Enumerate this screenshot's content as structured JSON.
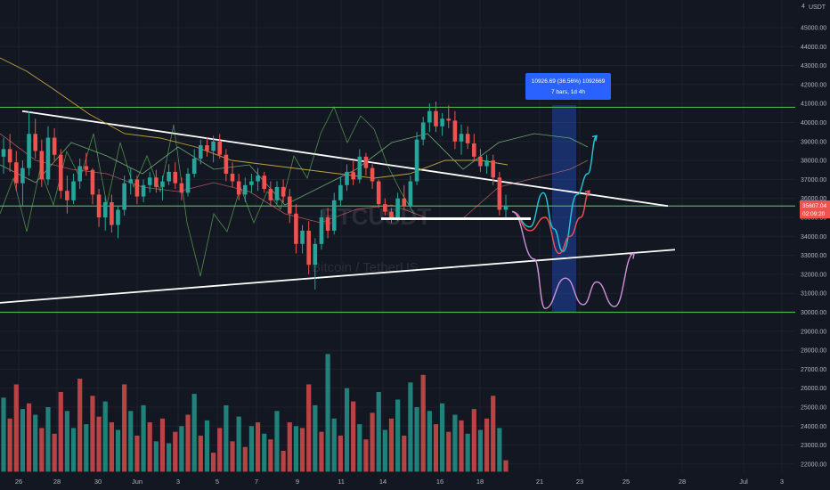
{
  "currency": "USDT",
  "watermark": {
    "ticker": "BTCUSDT",
    "name": "Bitcoin / TetherUS"
  },
  "measure": {
    "line1": "10926.69 (36.56%) 1092669",
    "line2": "7 bars, 1d 4h"
  },
  "price_tag": {
    "price": "35607.04",
    "countdown": "02:09:20"
  },
  "colors": {
    "bg": "#131722",
    "up": "#26a69a",
    "down": "#ef5350",
    "resistance": "#4caf50",
    "trendline": "#ffffff",
    "measure": "#2962ff"
  },
  "chart_data": {
    "type": "candlestick",
    "y_range": [
      21600,
      46000
    ],
    "y_ticks": [
      "45000.00",
      "44000.00",
      "43000.00",
      "42000.00",
      "41000.00",
      "40000.00",
      "39000.00",
      "38000.00",
      "37000.00",
      "36000.00",
      "35000.00",
      "34000.00",
      "33000.00",
      "32000.00",
      "31000.00",
      "30000.00",
      "29000.00",
      "28000.00",
      "27000.00",
      "26000.00",
      "25000.00",
      "24000.00",
      "23000.00",
      "22000.00"
    ],
    "y_top_label": "4",
    "x_ticks": [
      "26",
      "28",
      "30",
      "Jun",
      "3",
      "5",
      "7",
      "9",
      "11",
      "14",
      "16",
      "18",
      "21",
      "23",
      "25",
      "28",
      "Jul",
      "3"
    ],
    "horizontal_levels": [
      40800,
      35600,
      30000
    ],
    "support_level": 34800,
    "trendlines": [
      {
        "from": [
          "26",
          40600
        ],
        "to": [
          "23",
          35600
        ]
      },
      {
        "from": [
          "26",
          30500
        ],
        "to": [
          "28",
          33300
        ]
      }
    ],
    "projections": [
      {
        "path": [
          35300,
          34500,
          36300,
          34400,
          33200,
          36200,
          37300,
          39300
        ]
      },
      {
        "path": [
          35300,
          34300,
          35000,
          33100,
          34000,
          35000,
          36400
        ]
      },
      {
        "path": [
          35300,
          32800,
          30200,
          31800,
          30400,
          31600,
          30300,
          33100
        ]
      }
    ],
    "candles": [
      [
        38200,
        39200,
        37300,
        38600
      ],
      [
        38600,
        39400,
        37400,
        37900
      ],
      [
        37900,
        38500,
        36400,
        36800
      ],
      [
        36800,
        38000,
        35600,
        37600
      ],
      [
        37600,
        40600,
        37200,
        39400
      ],
      [
        39400,
        40200,
        38100,
        38500
      ],
      [
        38500,
        39100,
        36600,
        37000
      ],
      [
        37000,
        39800,
        36700,
        39200
      ],
      [
        39200,
        39700,
        38000,
        38300
      ],
      [
        38300,
        38600,
        36000,
        36400
      ],
      [
        36400,
        37200,
        35200,
        35900
      ],
      [
        35900,
        37300,
        35700,
        36900
      ],
      [
        36900,
        38100,
        36500,
        37700
      ],
      [
        37700,
        38400,
        37200,
        37500
      ],
      [
        37500,
        37600,
        35700,
        36200
      ],
      [
        36200,
        36500,
        34500,
        35000
      ],
      [
        35000,
        36100,
        34300,
        35800
      ],
      [
        35800,
        36200,
        34200,
        34600
      ],
      [
        34600,
        35600,
        33900,
        35400
      ],
      [
        35400,
        37200,
        35100,
        36800
      ],
      [
        36800,
        37600,
        36200,
        37000
      ],
      [
        37000,
        37200,
        35700,
        36100
      ],
      [
        36100,
        37000,
        35800,
        36700
      ],
      [
        36700,
        37400,
        36300,
        37100
      ],
      [
        37100,
        37500,
        36300,
        36600
      ],
      [
        36600,
        37200,
        35900,
        36900
      ],
      [
        36900,
        37800,
        36700,
        37400
      ],
      [
        37400,
        37900,
        36500,
        36800
      ],
      [
        36800,
        37100,
        35900,
        36300
      ],
      [
        36300,
        37600,
        36100,
        37300
      ],
      [
        37300,
        38600,
        37100,
        38100
      ],
      [
        38100,
        39100,
        37800,
        38800
      ],
      [
        38800,
        39200,
        38200,
        38500
      ],
      [
        38500,
        39300,
        37900,
        39000
      ],
      [
        39000,
        39400,
        38100,
        38300
      ],
      [
        38300,
        38600,
        36900,
        37300
      ],
      [
        37300,
        37900,
        36600,
        36900
      ],
      [
        36900,
        37300,
        35900,
        36200
      ],
      [
        36200,
        37100,
        35800,
        36700
      ],
      [
        36700,
        37300,
        36300,
        36900
      ],
      [
        36900,
        37600,
        36400,
        37200
      ],
      [
        37200,
        37400,
        36300,
        36500
      ],
      [
        36500,
        36900,
        35600,
        35900
      ],
      [
        35900,
        36900,
        35700,
        36600
      ],
      [
        36600,
        37000,
        35800,
        36100
      ],
      [
        36100,
        36500,
        34700,
        35200
      ],
      [
        35200,
        35700,
        33100,
        33600
      ],
      [
        33600,
        34600,
        33100,
        34300
      ],
      [
        34300,
        34800,
        32000,
        32500
      ],
      [
        32500,
        33900,
        31200,
        33600
      ],
      [
        33600,
        35400,
        33300,
        35000
      ],
      [
        35000,
        35500,
        33900,
        34300
      ],
      [
        34300,
        36300,
        34100,
        35900
      ],
      [
        35900,
        37100,
        35600,
        36700
      ],
      [
        36700,
        37800,
        36400,
        37400
      ],
      [
        37400,
        38000,
        36700,
        37000
      ],
      [
        37000,
        38600,
        36800,
        38200
      ],
      [
        38200,
        38400,
        37200,
        37600
      ],
      [
        37600,
        37800,
        36500,
        36900
      ],
      [
        36900,
        37000,
        35500,
        35700
      ],
      [
        35700,
        36000,
        35100,
        35300
      ],
      [
        35300,
        35500,
        34700,
        35000
      ],
      [
        35000,
        36300,
        34800,
        36000
      ],
      [
        36000,
        36700,
        35400,
        35600
      ],
      [
        35600,
        37200,
        35500,
        36900
      ],
      [
        36900,
        39500,
        36700,
        39100
      ],
      [
        39100,
        40300,
        38800,
        40000
      ],
      [
        40000,
        41000,
        39500,
        40600
      ],
      [
        40600,
        41100,
        39500,
        39800
      ],
      [
        39800,
        40500,
        39300,
        40200
      ],
      [
        40200,
        40900,
        39700,
        40100
      ],
      [
        40100,
        40600,
        38600,
        39000
      ],
      [
        39000,
        39900,
        38300,
        39400
      ],
      [
        39400,
        39800,
        38600,
        38900
      ],
      [
        38900,
        39400,
        38000,
        38200
      ],
      [
        38200,
        38600,
        37400,
        37700
      ],
      [
        37700,
        38300,
        37300,
        38000
      ],
      [
        38000,
        38300,
        36700,
        37100
      ],
      [
        37100,
        37400,
        35100,
        35400
      ],
      [
        35400,
        36200,
        35000,
        35600
      ]
    ],
    "volume_range": [
      21600,
      28100
    ],
    "volumes": [
      [
        25500,
        1
      ],
      [
        24400,
        0
      ],
      [
        26200,
        0
      ],
      [
        24900,
        1
      ],
      [
        25200,
        0
      ],
      [
        24600,
        1
      ],
      [
        23900,
        0
      ],
      [
        25000,
        1
      ],
      [
        23600,
        0
      ],
      [
        25800,
        0
      ],
      [
        24800,
        1
      ],
      [
        23900,
        1
      ],
      [
        26500,
        0
      ],
      [
        24100,
        1
      ],
      [
        25600,
        0
      ],
      [
        24500,
        0
      ],
      [
        25300,
        1
      ],
      [
        24200,
        0
      ],
      [
        23800,
        1
      ],
      [
        26200,
        0
      ],
      [
        24800,
        1
      ],
      [
        23500,
        0
      ],
      [
        25100,
        1
      ],
      [
        24200,
        0
      ],
      [
        23200,
        1
      ],
      [
        24400,
        0
      ],
      [
        23100,
        1
      ],
      [
        23700,
        0
      ],
      [
        24000,
        1
      ],
      [
        24600,
        0
      ],
      [
        25700,
        1
      ],
      [
        23500,
        0
      ],
      [
        24300,
        1
      ],
      [
        22600,
        0
      ],
      [
        23900,
        0
      ],
      [
        25100,
        1
      ],
      [
        23200,
        0
      ],
      [
        24500,
        1
      ],
      [
        22900,
        0
      ],
      [
        24000,
        1
      ],
      [
        24200,
        0
      ],
      [
        23600,
        1
      ],
      [
        23300,
        0
      ],
      [
        24800,
        1
      ],
      [
        22700,
        0
      ],
      [
        24200,
        0
      ],
      [
        24000,
        1
      ],
      [
        23900,
        0
      ],
      [
        26200,
        0
      ],
      [
        25100,
        1
      ],
      [
        23700,
        0
      ],
      [
        27800,
        1
      ],
      [
        24400,
        1
      ],
      [
        23500,
        0
      ],
      [
        26000,
        1
      ],
      [
        25300,
        0
      ],
      [
        24100,
        1
      ],
      [
        23300,
        0
      ],
      [
        24700,
        0
      ],
      [
        25800,
        1
      ],
      [
        23800,
        1
      ],
      [
        24400,
        0
      ],
      [
        25400,
        1
      ],
      [
        23500,
        0
      ],
      [
        26300,
        1
      ],
      [
        25000,
        1
      ],
      [
        26700,
        0
      ],
      [
        24800,
        1
      ],
      [
        24100,
        0
      ],
      [
        25200,
        1
      ],
      [
        23700,
        0
      ],
      [
        24600,
        1
      ],
      [
        24300,
        0
      ],
      [
        23600,
        1
      ],
      [
        24900,
        0
      ],
      [
        23800,
        1
      ],
      [
        24400,
        0
      ],
      [
        25600,
        0
      ],
      [
        23900,
        1
      ],
      [
        22200,
        0
      ]
    ]
  }
}
